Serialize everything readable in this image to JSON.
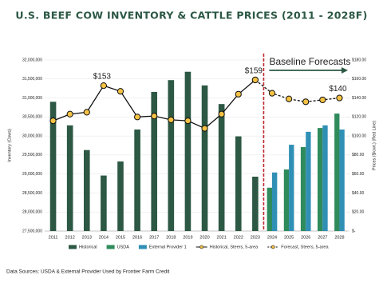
{
  "chart_data": {
    "type": "bar",
    "title": "U.S. BEEF COW INVENTORY & CATTLE PRICES (2011 - 2028F)",
    "y_label": "Inventory (Cows)",
    "y2_label": "Prices ($/cwt.) (Red Line)",
    "annotation": "Baseline Forecasts",
    "source": "Data Sources: USDA & External Provider Used by Frontier Farm Credit",
    "categories": [
      "2011",
      "2012",
      "2013",
      "2014",
      "2015",
      "2016",
      "2017",
      "2018",
      "2019",
      "2020",
      "2021",
      "2022",
      "2023",
      "2024",
      "2025",
      "2026",
      "2027",
      "2028"
    ],
    "ylim": [
      27500000,
      32000000
    ],
    "yticks": [
      {
        "value": 27500000,
        "label": "27,500,000"
      },
      {
        "value": 28000000,
        "label": "28,000,000"
      },
      {
        "value": 28500000,
        "label": "28,500,000"
      },
      {
        "value": 29000000,
        "label": "29,000,000"
      },
      {
        "value": 29500000,
        "label": "29,500,000"
      },
      {
        "value": 30000000,
        "label": "30,000,000"
      },
      {
        "value": 30500000,
        "label": "30,500,000"
      },
      {
        "value": 31000000,
        "label": "31,000,000"
      },
      {
        "value": 31500000,
        "label": "31,500,000"
      },
      {
        "value": 32000000,
        "label": "32,000,000"
      }
    ],
    "y2lim": [
      0,
      180
    ],
    "y2ticks": [
      {
        "value": 0,
        "label": "$-"
      },
      {
        "value": 20,
        "label": "$20.00"
      },
      {
        "value": 40,
        "label": "$40.00"
      },
      {
        "value": 60,
        "label": "$60.00"
      },
      {
        "value": 80,
        "label": "$80.00"
      },
      {
        "value": 100,
        "label": "$100.00"
      },
      {
        "value": 120,
        "label": "$120.00"
      },
      {
        "value": 140,
        "label": "$140.00"
      },
      {
        "value": 160,
        "label": "$160.00"
      },
      {
        "value": 180,
        "label": "$180.00"
      }
    ],
    "series": [
      {
        "name": "Historical",
        "type": "bar",
        "color": "#2c5844",
        "values": [
          30900000,
          30280000,
          29630000,
          28960000,
          29330000,
          30170000,
          31160000,
          31470000,
          31690000,
          31330000,
          30840000,
          29990000,
          28930000,
          null,
          null,
          null,
          null,
          null
        ]
      },
      {
        "name": "USDA",
        "type": "bar",
        "color": "#2f8b5c",
        "values": [
          null,
          null,
          null,
          null,
          null,
          null,
          null,
          null,
          null,
          null,
          null,
          null,
          null,
          28640000,
          29120000,
          29710000,
          30210000,
          30590000
        ]
      },
      {
        "name": "External Provider 1",
        "type": "bar",
        "color": "#2f8fb5",
        "values": [
          null,
          null,
          null,
          null,
          null,
          null,
          null,
          null,
          null,
          null,
          null,
          null,
          null,
          29040000,
          29770000,
          30110000,
          30280000,
          30170000
        ]
      },
      {
        "name": "Historical, Steers, 5-area",
        "type": "line",
        "axis": "y2",
        "color": "#111111",
        "marker": "#f4c244",
        "dashed": false,
        "values": [
          116,
          123,
          125,
          153,
          147,
          120,
          121,
          117,
          116,
          108,
          123,
          144,
          159,
          null,
          null,
          null,
          null,
          null
        ],
        "value_labels": [
          null,
          null,
          null,
          "$153",
          null,
          null,
          null,
          null,
          null,
          null,
          null,
          null,
          "$159",
          null,
          null,
          null,
          null,
          null
        ]
      },
      {
        "name": "Forecast, Steers, 5-area",
        "type": "line",
        "axis": "y2",
        "color": "#111111",
        "marker": "#f4c244",
        "dashed": true,
        "values": [
          null,
          null,
          null,
          null,
          null,
          null,
          null,
          null,
          null,
          null,
          null,
          null,
          159,
          145,
          139,
          136,
          138,
          140
        ],
        "value_labels": [
          null,
          null,
          null,
          null,
          null,
          null,
          null,
          null,
          null,
          null,
          null,
          null,
          null,
          null,
          null,
          null,
          null,
          "$140"
        ]
      }
    ]
  }
}
